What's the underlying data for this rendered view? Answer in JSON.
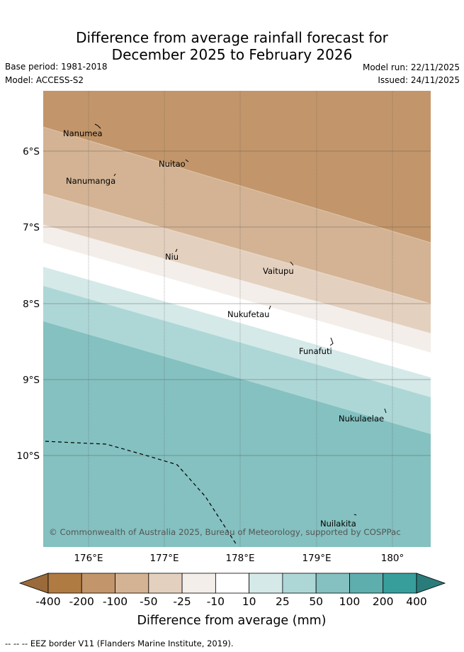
{
  "title": {
    "line1": "Difference from average rainfall forecast for",
    "line2": "December 2025 to February 2026"
  },
  "meta": {
    "base_period": "Base period: 1981-2018",
    "model": "Model: ACCESS-S2",
    "model_run": "Model run: 22/11/2025",
    "issued": "Issued: 24/11/2025"
  },
  "map": {
    "lon_range": [
      175.4,
      180.5
    ],
    "lat_range": [
      -11.2,
      -5.2
    ],
    "x_ticks": [
      "176°E",
      "177°E",
      "178°E",
      "179°E",
      "180°"
    ],
    "y_ticks": [
      "6°S",
      "7°S",
      "8°S",
      "9°S",
      "10°S"
    ],
    "places": [
      "Nanumea",
      "Nuitao",
      "Nanumanga",
      "Niu",
      "Vaitupu",
      "Nukufetau",
      "Funafuti",
      "Nukulaelae",
      "Nuilakita"
    ],
    "attribution": "© Commonwealth of Australia 2025, Bureau of Meteorology, supported by COSPPac"
  },
  "colorbar": {
    "labels": [
      "-400",
      "-200",
      "-100",
      "-50",
      "-25",
      "-10",
      "10",
      "25",
      "50",
      "100",
      "200",
      "400"
    ],
    "colors": [
      "#b07a43",
      "#c2966a",
      "#d3b393",
      "#e4d0bf",
      "#f3eee9",
      "#ffffff",
      "#d5e9e9",
      "#add7d6",
      "#84c1c0",
      "#5eaeae",
      "#379e9c"
    ],
    "under_color": "#9a6a3a",
    "over_color": "#2a7c7b",
    "title": "Difference from average (mm)"
  },
  "legend": {
    "eez": "-- -- -- EEZ border V11 (Flanders Marine Institute, 2019)."
  }
}
